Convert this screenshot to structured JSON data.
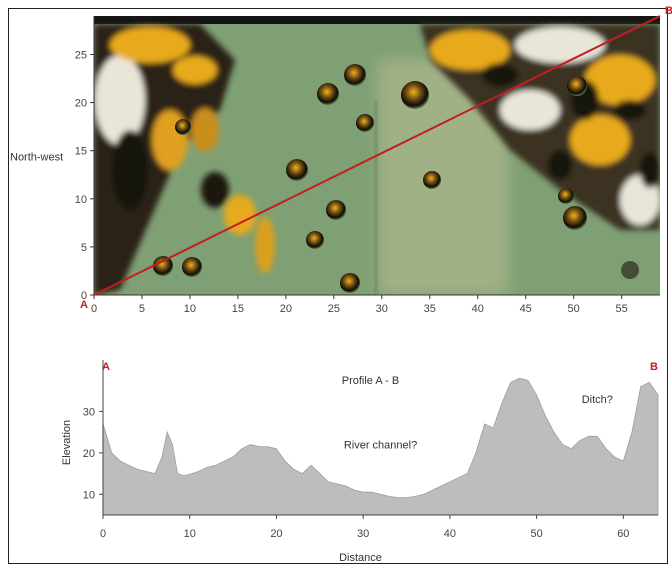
{
  "chart_data": [
    {
      "type": "heatmap",
      "ylabel": "North-west",
      "x_ticks": [
        0,
        5,
        10,
        15,
        20,
        25,
        30,
        35,
        40,
        45,
        50,
        55
      ],
      "y_ticks": [
        0,
        5,
        10,
        15,
        20,
        25
      ],
      "xlim": [
        0,
        59
      ],
      "ylim": [
        0,
        29
      ],
      "transect": {
        "start_label": "A",
        "end_label": "B",
        "start": [
          0,
          0
        ],
        "end": [
          59,
          29
        ]
      },
      "colors": {
        "transect": "#c0201e",
        "ground": "#7fa074",
        "pale_ground": "#a8b48a",
        "vegetation": "#e0a820",
        "shadow": "#1a1510"
      }
    },
    {
      "type": "area",
      "title": "Profile A - B",
      "xlabel": "Distance",
      "ylabel": "Elevation",
      "x_ticks": [
        0,
        10,
        20,
        30,
        40,
        50,
        60
      ],
      "y_ticks": [
        10,
        20,
        30
      ],
      "xlim": [
        0,
        64
      ],
      "ylim": [
        5,
        40
      ],
      "start_label": "A",
      "end_label": "B",
      "annotations": [
        {
          "text": "River channel?",
          "x": 32,
          "y": 21
        },
        {
          "text": "Ditch?",
          "x": 57,
          "y": 32
        }
      ],
      "color": "#bdbdbd",
      "x": [
        0,
        1,
        2,
        3,
        4,
        5,
        6,
        6.8,
        7.4,
        8,
        8.6,
        9.3,
        10,
        11,
        12,
        13,
        14,
        15,
        16,
        17,
        18,
        19,
        20,
        21,
        22,
        23,
        24,
        25,
        26,
        27,
        28,
        29,
        30,
        31,
        32,
        33,
        34,
        35,
        36,
        37,
        38,
        39,
        40,
        41,
        42,
        43,
        44,
        45,
        46,
        47,
        48,
        49,
        50,
        51,
        52,
        53,
        54,
        55,
        56,
        57,
        58,
        59,
        60,
        61,
        62,
        63,
        64
      ],
      "y": [
        27,
        20,
        18,
        17,
        16,
        15.5,
        15,
        19,
        25,
        22,
        15,
        14.5,
        14.8,
        15.5,
        16.5,
        17,
        18,
        19,
        21,
        22,
        21.5,
        21.5,
        21,
        18,
        16,
        15,
        17,
        15,
        13,
        12.5,
        12,
        11,
        10.5,
        10.5,
        10,
        9.5,
        9.2,
        9.2,
        9.5,
        10,
        11,
        12,
        13,
        14,
        15,
        20,
        27,
        26,
        32,
        37,
        38,
        37.5,
        34,
        29,
        25,
        22,
        21,
        23,
        24,
        24,
        21,
        19,
        18,
        25,
        36,
        37,
        34
      ]
    }
  ]
}
